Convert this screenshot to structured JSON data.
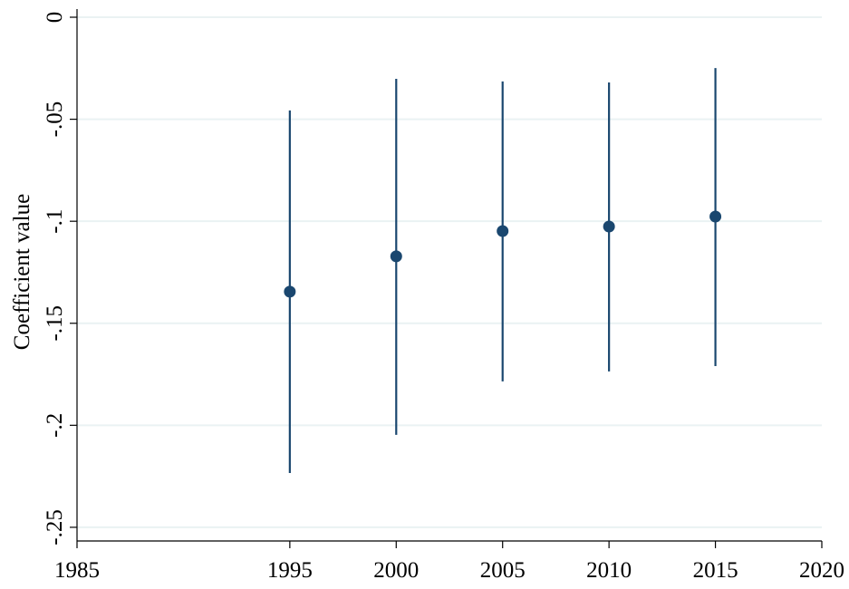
{
  "chart_data": {
    "type": "errorbar",
    "y_label": "Coefficient value",
    "x": [
      1995,
      2000,
      2005,
      2010,
      2015
    ],
    "series": [
      {
        "color": "#1a476f",
        "values": [
          -0.1345,
          -0.1172,
          -0.1048,
          -0.1026,
          -0.0977
        ],
        "lower": [
          -0.2234,
          -0.2047,
          -0.1785,
          -0.1736,
          -0.171
        ],
        "upper": [
          -0.0457,
          -0.0302,
          -0.0315,
          -0.032,
          -0.0249
        ]
      }
    ],
    "xlim": [
      1985,
      2020
    ],
    "xticks": [
      1985,
      1995,
      2000,
      2005,
      2010,
      2015,
      2020
    ],
    "ylim": [
      -0.2567,
      0.004
    ],
    "yticks": [
      0,
      {
        "value": -0.05,
        "label": "-.05"
      },
      {
        "value": -0.1,
        "label": "-.1"
      },
      {
        "value": -0.15,
        "label": "-.15"
      },
      {
        "value": -0.2,
        "label": "-.2"
      },
      {
        "value": -0.25,
        "label": "-.25"
      }
    ],
    "grid": true,
    "grid_color": "#eaf2f3"
  }
}
